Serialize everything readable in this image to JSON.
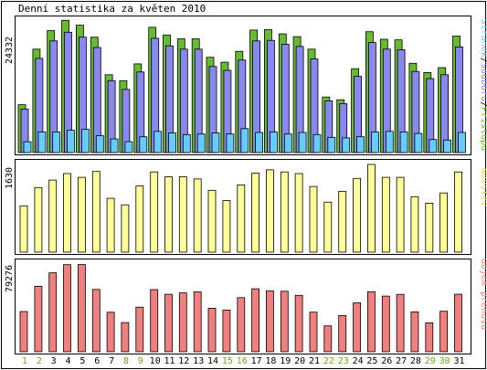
{
  "title": "Denní statistika za květen 2010",
  "colors": {
    "hits": "#66bb33",
    "files": "#8888ee",
    "pages": "#66ccff",
    "visits": "#ffff99",
    "traffic": "#f08080",
    "weekday_label": "#000000",
    "weekend_label": "#66aa22",
    "frame": "#000000"
  },
  "panels": {
    "top": {
      "ymax_label": "24332",
      "legend": {
        "pages": "Stránek",
        "sep1": "/",
        "files": "Souborů",
        "sep2": "/",
        "hits": "Přístupů"
      }
    },
    "middle": {
      "ymax_label": "1630",
      "legend": "Návštěv"
    },
    "bottom": {
      "ymax_label": "79276",
      "legend": "Objem přenosu"
    }
  },
  "chart_data": [
    {
      "type": "bar",
      "title": "",
      "x_labels": [
        "1",
        "2",
        "3",
        "4",
        "5",
        "6",
        "7",
        "8",
        "9",
        "10",
        "11",
        "12",
        "13",
        "14",
        "15",
        "16",
        "17",
        "18",
        "19",
        "20",
        "21",
        "22",
        "23",
        "24",
        "25",
        "26",
        "27",
        "28",
        "29",
        "30",
        "31"
      ],
      "weekend_days": [
        "1",
        "2",
        "8",
        "9",
        "15",
        "16",
        "22",
        "23",
        "29",
        "30"
      ],
      "ylim": [
        0,
        24332
      ],
      "series": [
        {
          "name": "Přístupů",
          "values": [
            8800,
            19000,
            22400,
            24300,
            23400,
            21200,
            14300,
            13200,
            16300,
            23000,
            21600,
            20900,
            20900,
            17500,
            16600,
            18600,
            22500,
            22600,
            21800,
            21300,
            19000,
            10200,
            9700,
            15400,
            22200,
            20800,
            20700,
            16400,
            14700,
            15600,
            21400
          ]
        },
        {
          "name": "Souborů",
          "values": [
            8000,
            17300,
            20500,
            22100,
            21200,
            19300,
            13200,
            11600,
            14800,
            21000,
            19600,
            19000,
            19000,
            15800,
            15100,
            17000,
            20500,
            20600,
            19900,
            19500,
            17200,
            9500,
            9000,
            14000,
            20200,
            19000,
            18900,
            14900,
            13600,
            14300,
            19400
          ]
        },
        {
          "name": "Stránek",
          "values": [
            2000,
            3800,
            3800,
            4100,
            4300,
            3100,
            2500,
            2000,
            2900,
            3900,
            3600,
            3300,
            3400,
            3600,
            3400,
            4400,
            3700,
            3800,
            3400,
            3700,
            3300,
            2800,
            2700,
            2900,
            3800,
            3900,
            3800,
            3500,
            2400,
            2300,
            3700
          ]
        }
      ]
    },
    {
      "type": "bar",
      "title": "",
      "x_labels": [
        "1",
        "2",
        "3",
        "4",
        "5",
        "6",
        "7",
        "8",
        "9",
        "10",
        "11",
        "12",
        "13",
        "14",
        "15",
        "16",
        "17",
        "18",
        "19",
        "20",
        "21",
        "22",
        "23",
        "24",
        "25",
        "26",
        "27",
        "28",
        "29",
        "30",
        "31"
      ],
      "ylim": [
        0,
        1630
      ],
      "series": [
        {
          "name": "Návštěv",
          "values": [
            860,
            1200,
            1340,
            1460,
            1390,
            1500,
            1000,
            880,
            1230,
            1490,
            1400,
            1400,
            1360,
            1150,
            960,
            1250,
            1470,
            1530,
            1490,
            1460,
            1220,
            930,
            1130,
            1370,
            1630,
            1390,
            1390,
            1030,
            910,
            1100,
            1490
          ]
        }
      ]
    },
    {
      "type": "bar",
      "title": "",
      "x_labels": [
        "1",
        "2",
        "3",
        "4",
        "5",
        "6",
        "7",
        "8",
        "9",
        "10",
        "11",
        "12",
        "13",
        "14",
        "15",
        "16",
        "17",
        "18",
        "19",
        "20",
        "21",
        "22",
        "23",
        "24",
        "25",
        "26",
        "27",
        "28",
        "29",
        "30",
        "31"
      ],
      "ylim": [
        0,
        79276
      ],
      "series": [
        {
          "name": "Objem přenosu",
          "values": [
            36000,
            58500,
            70600,
            77900,
            78000,
            55700,
            35300,
            26100,
            39900,
            55600,
            51400,
            52600,
            53500,
            38900,
            37200,
            48400,
            56300,
            54500,
            54100,
            50400,
            35400,
            23100,
            32400,
            43700,
            53700,
            49800,
            51300,
            35600,
            25800,
            36200,
            51400
          ]
        }
      ]
    }
  ]
}
